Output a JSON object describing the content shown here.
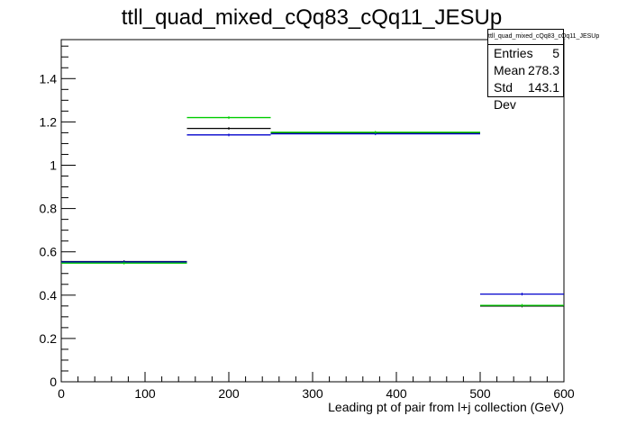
{
  "chart_data": {
    "type": "histogram",
    "title": "ttll_quad_mixed_cQq83_cQq11_JESUp",
    "xlabel": "Leading pt of pair from l+j collection (GeV)",
    "ylabel": "",
    "xlim": [
      0,
      600
    ],
    "ylim": [
      0,
      1.58
    ],
    "x_ticks": [
      "0",
      "100",
      "200",
      "300",
      "400",
      "500",
      "600"
    ],
    "y_ticks": [
      "0",
      "0.2",
      "0.4",
      "0.6",
      "0.8",
      "1",
      "1.2",
      "1.4"
    ],
    "bins": [
      [
        0,
        150
      ],
      [
        150,
        250
      ],
      [
        250,
        500
      ],
      [
        500,
        600
      ]
    ],
    "series": [
      {
        "color": "#000000",
        "values": [
          0.555,
          1.17,
          1.15,
          0.35
        ]
      },
      {
        "color": "#0000cc",
        "values": [
          0.553,
          1.14,
          1.145,
          0.405
        ]
      },
      {
        "color": "#00cc00",
        "values": [
          0.548,
          1.22,
          1.152,
          0.353
        ]
      }
    ],
    "grid": false,
    "stats": {
      "name": "ttll_quad_mixed_cQq83_cQq11_JESUp",
      "rows": [
        {
          "label": "Entries",
          "value": "5"
        },
        {
          "label": "Mean",
          "value": "278.3"
        },
        {
          "label": "Std Dev",
          "value": "143.1"
        }
      ]
    }
  }
}
